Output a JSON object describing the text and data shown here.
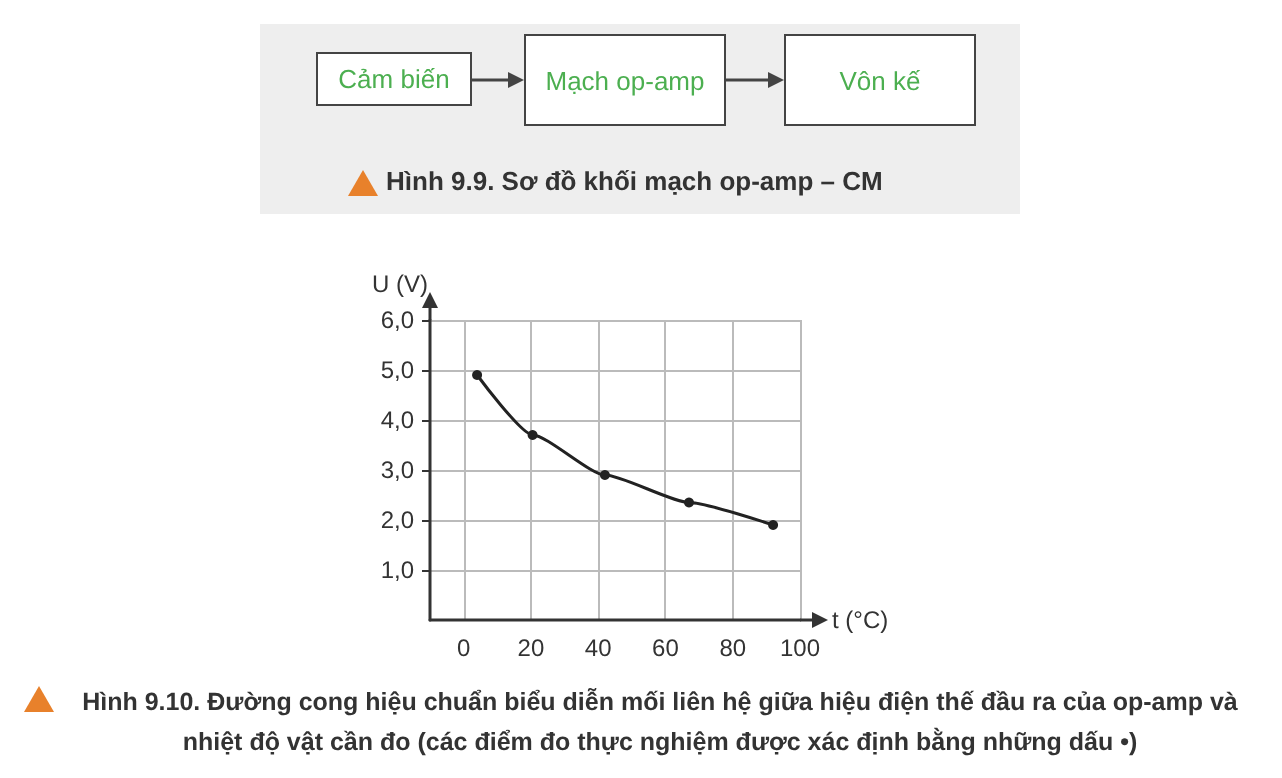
{
  "chart_data": {
    "type": "line",
    "title": "Hình 9.10. Đường cong hiệu chuẩn biểu diễn mối liên hệ giữa hiệu điện thế đầu ra của op-amp và nhiệt độ vật cần đo (các điểm đo thực nghiệm được xác định bằng những dấu •)",
    "annotations": [
      "Cảm biến",
      "Mạch op-amp",
      "Vôn kế",
      "Hình 9.9. Sơ đồ khối mạch op-amp – CM"
    ],
    "xlabel": "t (°C)",
    "ylabel": "U (V)",
    "x": [
      4,
      20.5,
      42,
      67,
      92
    ],
    "series": [
      {
        "color": "#222222",
        "values": [
          4.9,
          3.7,
          2.9,
          2.35,
          1.9
        ]
      }
    ],
    "xlim": [
      -10,
      100
    ],
    "ylim": [
      0,
      6
    ],
    "xticks": [
      0,
      20,
      40,
      60,
      80,
      100
    ],
    "yticks": [
      {
        "value": 1,
        "label": "1,0"
      },
      {
        "value": 2,
        "label": "2,0"
      },
      {
        "value": 3,
        "label": "3,0"
      },
      {
        "value": 4,
        "label": "4,0"
      },
      {
        "value": 5,
        "label": "5,0"
      },
      {
        "value": 6,
        "label": "6,0"
      }
    ],
    "grid": true,
    "marker": "circle",
    "line_style": "solid"
  }
}
